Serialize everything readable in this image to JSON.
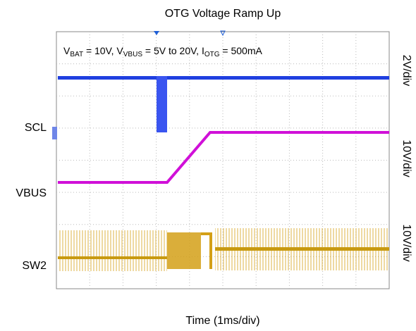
{
  "title": "OTG Voltage Ramp Up",
  "annotation": [
    "V",
    "BAT",
    " = 10V, V",
    "VBUS",
    " = 5V to 20V, I",
    "OTG",
    " = 500mA"
  ],
  "channels": [
    {
      "label": "SCL",
      "scale": "2V/div"
    },
    {
      "label": "VBUS",
      "scale": "10V/div"
    },
    {
      "label": "SW2",
      "scale": "10V/div"
    }
  ],
  "x_label": "Time (1ms/div)"
}
